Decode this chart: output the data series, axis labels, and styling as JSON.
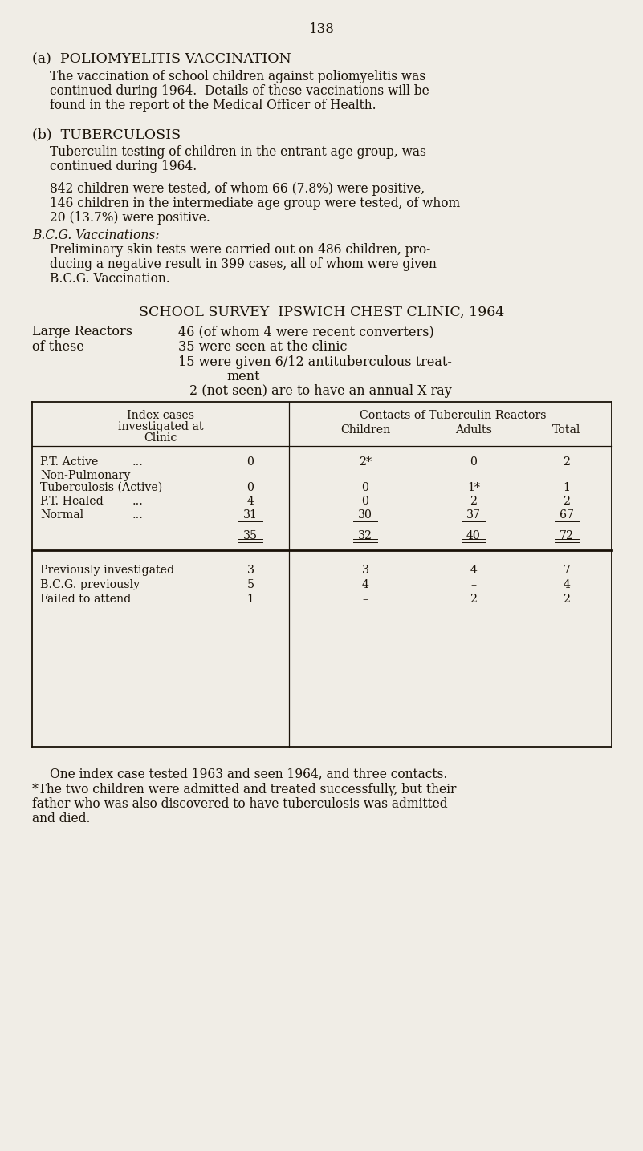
{
  "page_number": "138",
  "bg_color": "#F0EDE6",
  "text_color": "#1a1208",
  "section_a_heading": "(a)  POLIOMYELITIS VACCINATION",
  "section_a_para_lines": [
    "The vaccination of school children against poliomyelitis was",
    "continued during 1964.  Details of these vaccinations will be",
    "found in the report of the Medical Officer of Health."
  ],
  "section_b_heading": "(b)  TUBERCULOSIS",
  "section_b_para1_lines": [
    "Tuberculin testing of children in the entrant age group, was",
    "continued during 1964."
  ],
  "section_b_para2_lines": [
    "842 children were tested, of whom 66 (7.8%) were positive,",
    "146 children in the intermediate age group were tested, of whom",
    "20 (13.7%) were positive."
  ],
  "bcg_heading": "B.C.G. Vaccinations:",
  "bcg_para_lines": [
    "Preliminary skin tests were carried out on 486 children, pro-",
    "ducing a negative result in 399 cases, all of whom were given",
    "B.C.G. Vaccination."
  ],
  "survey_heading": "SCHOOL SURVEY  IPSWICH CHEST CLINIC, 1964",
  "large_reactors_left1": "Large Reactors",
  "large_reactors_left2": "of these",
  "large_reactors_right": [
    "46 (of whom 4 were recent converters)",
    "35 were seen at the clinic",
    "15 were given 6/12 antituberculous treat-",
    "          ment",
    "2 (not seen) are to have an annual X-ray"
  ],
  "footnote1": "One index case tested 1963 and seen 1964, and three contacts.",
  "footnote2_lines": [
    "*The two children were admitted and treated successfully, but their",
    "father who was also discovered to have tuberculosis was admitted",
    "and died."
  ]
}
